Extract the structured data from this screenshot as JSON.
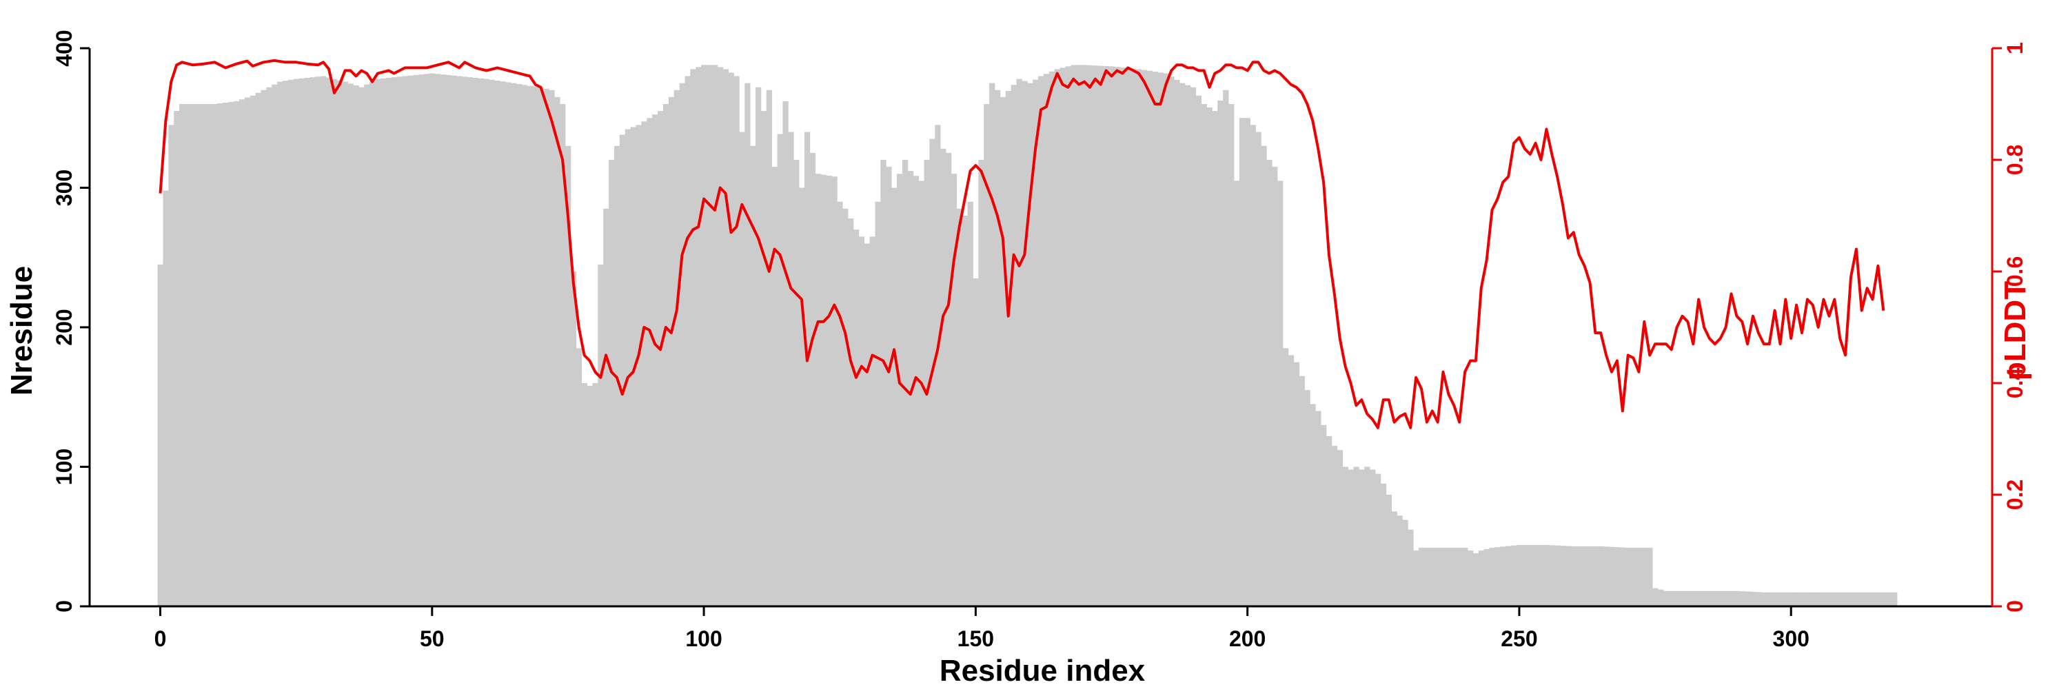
{
  "chart_data": {
    "type": "bar+line",
    "xlabel": "Residue index",
    "ylabel_left": "Nresidue",
    "ylabel_right": "pLDDT",
    "xlim": [
      -13,
      337
    ],
    "ylim_left": [
      0,
      400
    ],
    "ylim_right": [
      0,
      1
    ],
    "x_ticks": [
      0,
      50,
      100,
      150,
      200,
      250,
      300
    ],
    "y_ticks_left": [
      0,
      100,
      200,
      300,
      400
    ],
    "y_ticks_right": [
      0,
      0.2,
      0.4,
      0.6,
      0.8,
      1
    ],
    "colors": {
      "bars": "#cccccc",
      "line": "#ee0000",
      "left_axis": "#000000",
      "right_axis": "#ee0000"
    },
    "bar_anchors": [
      [
        0,
        245
      ],
      [
        1,
        298
      ],
      [
        2,
        345
      ],
      [
        3,
        355
      ],
      [
        4,
        360
      ],
      [
        10,
        360
      ],
      [
        14,
        362
      ],
      [
        17,
        366
      ],
      [
        20,
        372
      ],
      [
        22,
        376
      ],
      [
        25,
        378
      ],
      [
        30,
        380
      ],
      [
        34,
        376
      ],
      [
        37,
        372
      ],
      [
        40,
        378
      ],
      [
        45,
        380
      ],
      [
        50,
        382
      ],
      [
        55,
        380
      ],
      [
        60,
        378
      ],
      [
        65,
        375
      ],
      [
        68,
        373
      ],
      [
        70,
        372
      ],
      [
        72,
        370
      ],
      [
        74,
        360
      ],
      [
        75,
        330
      ],
      [
        76,
        240
      ],
      [
        77,
        185
      ],
      [
        78,
        160
      ],
      [
        79,
        158
      ],
      [
        80,
        160
      ],
      [
        81,
        245
      ],
      [
        82,
        285
      ],
      [
        83,
        320
      ],
      [
        84,
        330
      ],
      [
        85,
        338
      ],
      [
        86,
        342
      ],
      [
        88,
        345
      ],
      [
        90,
        350
      ],
      [
        92,
        355
      ],
      [
        94,
        365
      ],
      [
        96,
        375
      ],
      [
        98,
        385
      ],
      [
        100,
        388
      ],
      [
        102,
        388
      ],
      [
        104,
        385
      ],
      [
        106,
        380
      ],
      [
        107,
        340
      ],
      [
        108,
        375
      ],
      [
        109,
        330
      ],
      [
        110,
        372
      ],
      [
        111,
        355
      ],
      [
        112,
        370
      ],
      [
        113,
        315
      ],
      [
        115,
        362
      ],
      [
        116,
        340
      ],
      [
        118,
        300
      ],
      [
        119,
        340
      ],
      [
        120,
        325
      ],
      [
        121,
        310
      ],
      [
        124,
        308
      ],
      [
        125,
        290
      ],
      [
        126,
        285
      ],
      [
        127,
        278
      ],
      [
        128,
        270
      ],
      [
        129,
        265
      ],
      [
        130,
        260
      ],
      [
        131,
        265
      ],
      [
        132,
        290
      ],
      [
        133,
        320
      ],
      [
        134,
        315
      ],
      [
        135,
        300
      ],
      [
        136,
        310
      ],
      [
        137,
        320
      ],
      [
        138,
        312
      ],
      [
        140,
        305
      ],
      [
        141,
        320
      ],
      [
        142,
        335
      ],
      [
        143,
        345
      ],
      [
        144,
        328
      ],
      [
        145,
        325
      ],
      [
        146,
        310
      ],
      [
        147,
        285
      ],
      [
        148,
        280
      ],
      [
        149,
        290
      ],
      [
        150,
        235
      ],
      [
        151,
        320
      ],
      [
        152,
        360
      ],
      [
        153,
        375
      ],
      [
        155,
        365
      ],
      [
        158,
        378
      ],
      [
        160,
        375
      ],
      [
        162,
        380
      ],
      [
        165,
        385
      ],
      [
        168,
        388
      ],
      [
        170,
        388
      ],
      [
        175,
        387
      ],
      [
        180,
        385
      ],
      [
        185,
        382
      ],
      [
        188,
        375
      ],
      [
        190,
        372
      ],
      [
        192,
        360
      ],
      [
        194,
        355
      ],
      [
        196,
        370
      ],
      [
        197,
        360
      ],
      [
        198,
        305
      ],
      [
        199,
        350
      ],
      [
        200,
        350
      ],
      [
        201,
        345
      ],
      [
        202,
        340
      ],
      [
        203,
        330
      ],
      [
        204,
        320
      ],
      [
        205,
        315
      ],
      [
        206,
        305
      ],
      [
        207,
        185
      ],
      [
        208,
        180
      ],
      [
        209,
        175
      ],
      [
        210,
        165
      ],
      [
        211,
        155
      ],
      [
        212,
        145
      ],
      [
        213,
        140
      ],
      [
        214,
        130
      ],
      [
        215,
        122
      ],
      [
        216,
        115
      ],
      [
        217,
        112
      ],
      [
        218,
        100
      ],
      [
        219,
        98
      ],
      [
        220,
        100
      ],
      [
        221,
        98
      ],
      [
        222,
        100
      ],
      [
        223,
        98
      ],
      [
        224,
        95
      ],
      [
        225,
        88
      ],
      [
        226,
        80
      ],
      [
        227,
        68
      ],
      [
        228,
        65
      ],
      [
        229,
        62
      ],
      [
        230,
        55
      ],
      [
        231,
        40
      ],
      [
        232,
        42
      ],
      [
        235,
        42
      ],
      [
        240,
        42
      ],
      [
        242,
        38
      ],
      [
        243,
        40
      ],
      [
        245,
        42
      ],
      [
        250,
        44
      ],
      [
        255,
        44
      ],
      [
        260,
        43
      ],
      [
        265,
        43
      ],
      [
        270,
        42
      ],
      [
        274,
        42
      ],
      [
        275,
        13
      ],
      [
        277,
        11
      ],
      [
        285,
        11
      ],
      [
        290,
        11
      ],
      [
        295,
        10
      ],
      [
        300,
        10
      ],
      [
        305,
        10
      ],
      [
        310,
        10
      ],
      [
        315,
        10
      ],
      [
        319,
        10
      ]
    ],
    "plddt": [
      [
        0,
        0.74
      ],
      [
        1,
        0.87
      ],
      [
        2,
        0.94
      ],
      [
        3,
        0.97
      ],
      [
        4,
        0.975
      ],
      [
        6,
        0.97
      ],
      [
        8,
        0.972
      ],
      [
        10,
        0.975
      ],
      [
        12,
        0.965
      ],
      [
        14,
        0.972
      ],
      [
        16,
        0.977
      ],
      [
        17,
        0.968
      ],
      [
        19,
        0.975
      ],
      [
        21,
        0.978
      ],
      [
        23,
        0.975
      ],
      [
        25,
        0.975
      ],
      [
        27,
        0.972
      ],
      [
        29,
        0.97
      ],
      [
        30,
        0.975
      ],
      [
        31,
        0.963
      ],
      [
        32,
        0.92
      ],
      [
        33,
        0.935
      ],
      [
        34,
        0.96
      ],
      [
        35,
        0.96
      ],
      [
        36,
        0.95
      ],
      [
        37,
        0.96
      ],
      [
        38,
        0.955
      ],
      [
        39,
        0.94
      ],
      [
        40,
        0.955
      ],
      [
        42,
        0.96
      ],
      [
        43,
        0.955
      ],
      [
        45,
        0.965
      ],
      [
        47,
        0.965
      ],
      [
        49,
        0.965
      ],
      [
        51,
        0.97
      ],
      [
        53,
        0.975
      ],
      [
        55,
        0.965
      ],
      [
        56,
        0.975
      ],
      [
        58,
        0.965
      ],
      [
        60,
        0.96
      ],
      [
        62,
        0.965
      ],
      [
        64,
        0.96
      ],
      [
        66,
        0.955
      ],
      [
        68,
        0.95
      ],
      [
        69,
        0.935
      ],
      [
        70,
        0.93
      ],
      [
        72,
        0.87
      ],
      [
        74,
        0.8
      ],
      [
        75,
        0.7
      ],
      [
        76,
        0.58
      ],
      [
        77,
        0.5
      ],
      [
        78,
        0.45
      ],
      [
        79,
        0.44
      ],
      [
        80,
        0.42
      ],
      [
        81,
        0.41
      ],
      [
        82,
        0.45
      ],
      [
        83,
        0.42
      ],
      [
        84,
        0.41
      ],
      [
        85,
        0.38
      ],
      [
        86,
        0.41
      ],
      [
        87,
        0.42
      ],
      [
        88,
        0.45
      ],
      [
        89,
        0.5
      ],
      [
        90,
        0.495
      ],
      [
        91,
        0.47
      ],
      [
        92,
        0.46
      ],
      [
        93,
        0.5
      ],
      [
        94,
        0.49
      ],
      [
        95,
        0.53
      ],
      [
        96,
        0.63
      ],
      [
        97,
        0.66
      ],
      [
        98,
        0.675
      ],
      [
        99,
        0.68
      ],
      [
        100,
        0.73
      ],
      [
        101,
        0.72
      ],
      [
        102,
        0.71
      ],
      [
        103,
        0.75
      ],
      [
        104,
        0.74
      ],
      [
        105,
        0.67
      ],
      [
        106,
        0.68
      ],
      [
        107,
        0.72
      ],
      [
        108,
        0.7
      ],
      [
        109,
        0.68
      ],
      [
        110,
        0.66
      ],
      [
        111,
        0.63
      ],
      [
        112,
        0.6
      ],
      [
        113,
        0.64
      ],
      [
        114,
        0.63
      ],
      [
        115,
        0.6
      ],
      [
        116,
        0.57
      ],
      [
        117,
        0.56
      ],
      [
        118,
        0.55
      ],
      [
        119,
        0.44
      ],
      [
        120,
        0.48
      ],
      [
        121,
        0.51
      ],
      [
        122,
        0.51
      ],
      [
        123,
        0.52
      ],
      [
        124,
        0.54
      ],
      [
        125,
        0.52
      ],
      [
        126,
        0.49
      ],
      [
        127,
        0.44
      ],
      [
        128,
        0.41
      ],
      [
        129,
        0.43
      ],
      [
        130,
        0.42
      ],
      [
        131,
        0.45
      ],
      [
        132,
        0.445
      ],
      [
        133,
        0.44
      ],
      [
        134,
        0.42
      ],
      [
        135,
        0.46
      ],
      [
        136,
        0.4
      ],
      [
        137,
        0.39
      ],
      [
        138,
        0.38
      ],
      [
        139,
        0.41
      ],
      [
        140,
        0.4
      ],
      [
        141,
        0.38
      ],
      [
        142,
        0.42
      ],
      [
        143,
        0.46
      ],
      [
        144,
        0.52
      ],
      [
        145,
        0.54
      ],
      [
        146,
        0.62
      ],
      [
        147,
        0.68
      ],
      [
        148,
        0.73
      ],
      [
        149,
        0.78
      ],
      [
        150,
        0.79
      ],
      [
        151,
        0.78
      ],
      [
        152,
        0.755
      ],
      [
        153,
        0.73
      ],
      [
        154,
        0.7
      ],
      [
        155,
        0.66
      ],
      [
        156,
        0.52
      ],
      [
        157,
        0.63
      ],
      [
        158,
        0.61
      ],
      [
        159,
        0.63
      ],
      [
        160,
        0.73
      ],
      [
        161,
        0.82
      ],
      [
        162,
        0.89
      ],
      [
        163,
        0.895
      ],
      [
        164,
        0.93
      ],
      [
        165,
        0.955
      ],
      [
        166,
        0.935
      ],
      [
        167,
        0.93
      ],
      [
        168,
        0.945
      ],
      [
        169,
        0.935
      ],
      [
        170,
        0.94
      ],
      [
        171,
        0.93
      ],
      [
        172,
        0.945
      ],
      [
        173,
        0.935
      ],
      [
        174,
        0.96
      ],
      [
        175,
        0.95
      ],
      [
        176,
        0.96
      ],
      [
        177,
        0.955
      ],
      [
        178,
        0.965
      ],
      [
        179,
        0.96
      ],
      [
        180,
        0.955
      ],
      [
        181,
        0.94
      ],
      [
        182,
        0.92
      ],
      [
        183,
        0.9
      ],
      [
        184,
        0.9
      ],
      [
        185,
        0.935
      ],
      [
        186,
        0.96
      ],
      [
        187,
        0.97
      ],
      [
        188,
        0.97
      ],
      [
        189,
        0.965
      ],
      [
        190,
        0.965
      ],
      [
        191,
        0.96
      ],
      [
        192,
        0.96
      ],
      [
        193,
        0.93
      ],
      [
        194,
        0.955
      ],
      [
        195,
        0.96
      ],
      [
        196,
        0.97
      ],
      [
        197,
        0.97
      ],
      [
        198,
        0.965
      ],
      [
        199,
        0.965
      ],
      [
        200,
        0.96
      ],
      [
        201,
        0.975
      ],
      [
        202,
        0.975
      ],
      [
        203,
        0.96
      ],
      [
        204,
        0.955
      ],
      [
        205,
        0.96
      ],
      [
        206,
        0.955
      ],
      [
        207,
        0.945
      ],
      [
        208,
        0.935
      ],
      [
        209,
        0.93
      ],
      [
        210,
        0.92
      ],
      [
        211,
        0.9
      ],
      [
        212,
        0.87
      ],
      [
        213,
        0.82
      ],
      [
        214,
        0.76
      ],
      [
        215,
        0.63
      ],
      [
        216,
        0.56
      ],
      [
        217,
        0.48
      ],
      [
        218,
        0.43
      ],
      [
        219,
        0.4
      ],
      [
        220,
        0.36
      ],
      [
        221,
        0.37
      ],
      [
        222,
        0.345
      ],
      [
        223,
        0.335
      ],
      [
        224,
        0.32
      ],
      [
        225,
        0.37
      ],
      [
        226,
        0.37
      ],
      [
        227,
        0.33
      ],
      [
        228,
        0.34
      ],
      [
        229,
        0.345
      ],
      [
        230,
        0.32
      ],
      [
        231,
        0.41
      ],
      [
        232,
        0.39
      ],
      [
        233,
        0.33
      ],
      [
        234,
        0.35
      ],
      [
        235,
        0.33
      ],
      [
        236,
        0.42
      ],
      [
        237,
        0.38
      ],
      [
        238,
        0.36
      ],
      [
        239,
        0.33
      ],
      [
        240,
        0.42
      ],
      [
        241,
        0.44
      ],
      [
        242,
        0.44
      ],
      [
        243,
        0.57
      ],
      [
        244,
        0.62
      ],
      [
        245,
        0.71
      ],
      [
        246,
        0.73
      ],
      [
        247,
        0.76
      ],
      [
        248,
        0.77
      ],
      [
        249,
        0.83
      ],
      [
        250,
        0.84
      ],
      [
        251,
        0.82
      ],
      [
        252,
        0.81
      ],
      [
        253,
        0.83
      ],
      [
        254,
        0.8
      ],
      [
        255,
        0.855
      ],
      [
        256,
        0.81
      ],
      [
        257,
        0.77
      ],
      [
        258,
        0.72
      ],
      [
        259,
        0.66
      ],
      [
        260,
        0.67
      ],
      [
        261,
        0.63
      ],
      [
        262,
        0.61
      ],
      [
        263,
        0.58
      ],
      [
        264,
        0.49
      ],
      [
        265,
        0.49
      ],
      [
        266,
        0.45
      ],
      [
        267,
        0.42
      ],
      [
        268,
        0.44
      ],
      [
        269,
        0.35
      ],
      [
        270,
        0.45
      ],
      [
        271,
        0.445
      ],
      [
        272,
        0.42
      ],
      [
        273,
        0.51
      ],
      [
        274,
        0.45
      ],
      [
        275,
        0.47
      ],
      [
        276,
        0.47
      ],
      [
        277,
        0.47
      ],
      [
        278,
        0.46
      ],
      [
        279,
        0.5
      ],
      [
        280,
        0.52
      ],
      [
        281,
        0.51
      ],
      [
        282,
        0.47
      ],
      [
        283,
        0.55
      ],
      [
        284,
        0.5
      ],
      [
        285,
        0.48
      ],
      [
        286,
        0.47
      ],
      [
        287,
        0.48
      ],
      [
        288,
        0.5
      ],
      [
        289,
        0.56
      ],
      [
        290,
        0.52
      ],
      [
        291,
        0.51
      ],
      [
        292,
        0.47
      ],
      [
        293,
        0.52
      ],
      [
        294,
        0.49
      ],
      [
        295,
        0.47
      ],
      [
        296,
        0.47
      ],
      [
        297,
        0.53
      ],
      [
        298,
        0.47
      ],
      [
        299,
        0.55
      ],
      [
        300,
        0.48
      ],
      [
        301,
        0.54
      ],
      [
        302,
        0.49
      ],
      [
        303,
        0.55
      ],
      [
        304,
        0.54
      ],
      [
        305,
        0.5
      ],
      [
        306,
        0.55
      ],
      [
        307,
        0.52
      ],
      [
        308,
        0.55
      ],
      [
        309,
        0.48
      ],
      [
        310,
        0.45
      ],
      [
        311,
        0.59
      ],
      [
        312,
        0.64
      ],
      [
        313,
        0.53
      ],
      [
        314,
        0.57
      ],
      [
        315,
        0.55
      ],
      [
        316,
        0.61
      ],
      [
        317,
        0.53
      ]
    ]
  }
}
